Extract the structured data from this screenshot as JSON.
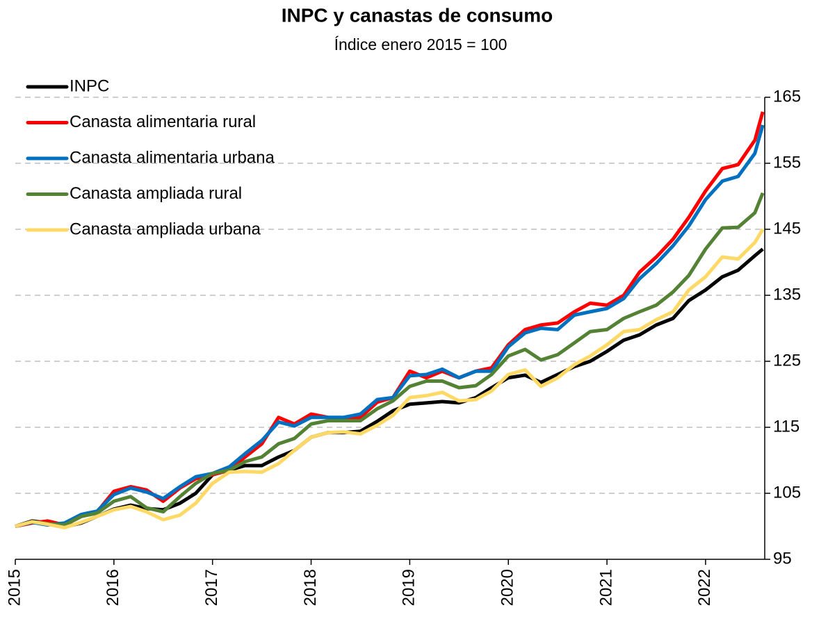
{
  "chart_data": {
    "type": "line",
    "title": "INPC y canastas de consumo",
    "subtitle": "Índice enero 2015 = 100",
    "x": [
      2015,
      2015.17,
      2015.33,
      2015.5,
      2015.67,
      2015.83,
      2016,
      2016.17,
      2016.33,
      2016.5,
      2016.67,
      2016.83,
      2017,
      2017.17,
      2017.33,
      2017.5,
      2017.67,
      2017.83,
      2018,
      2018.17,
      2018.33,
      2018.5,
      2018.67,
      2018.83,
      2019,
      2019.17,
      2019.33,
      2019.5,
      2019.67,
      2019.83,
      2020,
      2020.17,
      2020.33,
      2020.5,
      2020.67,
      2020.83,
      2021,
      2021.17,
      2021.33,
      2021.5,
      2021.67,
      2021.83,
      2022,
      2022.17,
      2022.33,
      2022.5,
      2022.58
    ],
    "series": [
      {
        "name": "INPC",
        "color": "#000000",
        "values": [
          100,
          100.8,
          100.5,
          99.9,
          100.5,
          101.5,
          102.6,
          103.2,
          102.7,
          102.5,
          103.5,
          105,
          107.8,
          108.5,
          109.2,
          109.2,
          110.5,
          111.5,
          113.5,
          114.2,
          114.2,
          114.4,
          115.9,
          117.5,
          118.5,
          118.7,
          118.9,
          118.7,
          119.5,
          121,
          122.5,
          122.9,
          121.8,
          123,
          124.2,
          125,
          126.5,
          128.2,
          129,
          130.5,
          131.5,
          134.2,
          135.8,
          137.8,
          138.8,
          141,
          142
        ]
      },
      {
        "name": "Canasta alimentaria rural",
        "color": "#ff0000",
        "values": [
          100,
          100.5,
          100.8,
          100.2,
          101.5,
          102.2,
          105.3,
          106,
          105.5,
          103.8,
          105.8,
          107.2,
          107.8,
          108.5,
          110.5,
          112.5,
          116.5,
          115.5,
          117,
          116.5,
          116.2,
          116.5,
          118.8,
          119.5,
          123.5,
          122.5,
          123.5,
          122.5,
          123.5,
          124,
          127.5,
          129.8,
          130.5,
          130.8,
          132.5,
          133.8,
          133.5,
          135,
          138.5,
          140.8,
          143.5,
          146.8,
          150.8,
          154.2,
          154.8,
          158.5,
          162.8
        ]
      },
      {
        "name": "Canasta alimentaria urbana",
        "color": "#0070c0",
        "values": [
          100,
          100.6,
          100.2,
          100.5,
          101.8,
          102.3,
          104.8,
          105.8,
          105.2,
          104.2,
          106,
          107.5,
          108,
          109,
          111,
          113,
          115.8,
          115.2,
          116.5,
          116.5,
          116.5,
          117,
          119.2,
          119.5,
          122.8,
          123,
          123.8,
          122.5,
          123.5,
          123.5,
          127.2,
          129.3,
          130,
          129.8,
          132,
          132.5,
          133,
          134.5,
          137.5,
          139.8,
          142.5,
          145.5,
          149.5,
          152.3,
          153,
          156.5,
          160.8
        ]
      },
      {
        "name": "Canasta ampliada rural",
        "color": "#548235",
        "values": [
          100,
          100.7,
          100.4,
          100.2,
          101.5,
          102,
          103.8,
          104.5,
          102.8,
          102.2,
          104.5,
          106.5,
          108,
          108.5,
          109.8,
          110.5,
          112.5,
          113.3,
          115.5,
          116,
          116,
          116,
          117.8,
          119,
          121.2,
          122,
          122,
          121,
          121.3,
          123,
          125.8,
          126.8,
          125.2,
          126,
          127.8,
          129.5,
          129.8,
          131.5,
          132.5,
          133.5,
          135.5,
          138,
          142,
          145.2,
          145.3,
          147.5,
          150.5
        ]
      },
      {
        "name": "Canasta ampliada urbana",
        "color": "#ffd966",
        "values": [
          100,
          100.7,
          100.3,
          99.8,
          100.6,
          101.5,
          102.5,
          103,
          102.2,
          101,
          101.7,
          103.5,
          106.5,
          108.2,
          108.3,
          108.2,
          109.5,
          111.5,
          113.5,
          114.2,
          114.3,
          114,
          115.3,
          116.8,
          119.5,
          119.8,
          120.3,
          119,
          119.2,
          120.5,
          123,
          123.7,
          121.2,
          122.5,
          124.5,
          125.8,
          127.5,
          129.5,
          129.8,
          131.3,
          132.5,
          135.8,
          137.8,
          140.8,
          140.5,
          143,
          145
        ]
      }
    ],
    "xlim": [
      2015,
      2022.6
    ],
    "xticks": [
      2015,
      2016,
      2017,
      2018,
      2019,
      2020,
      2021,
      2022
    ],
    "ylim": [
      95,
      165
    ],
    "yticks": [
      95,
      105,
      115,
      125,
      135,
      145,
      155,
      165
    ],
    "grid": true,
    "legend": "upper left"
  }
}
